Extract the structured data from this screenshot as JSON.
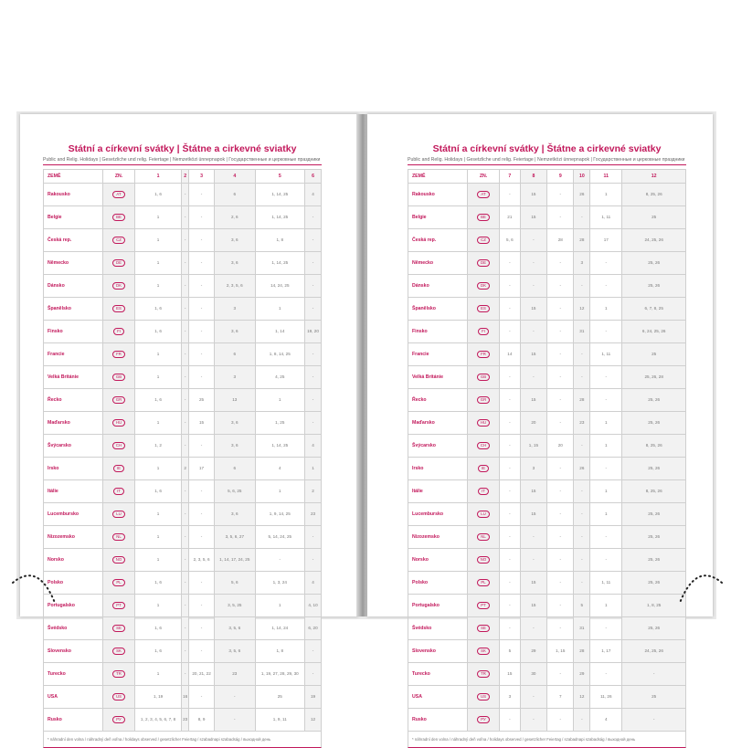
{
  "title": "Státní a církevní svátky | Štátne a cirkevné sviatky",
  "subtitle": "Public and Relig. Holidays | Gesetzliche und relig. Feiertage | Nemzetközi ünnepnapok | Государственные и церковные праздники",
  "col_country": "ZEMĚ",
  "col_code": "ZN.",
  "footnote": "* náhradní den volna / náhradný deň voľna / holidays observed / gesetzlicher Feiertag / szabadnapi szabadság / выходной день",
  "accent_color": "#c2185b",
  "countries": [
    {
      "name": "Rakousko",
      "code": "AT"
    },
    {
      "name": "Belgie",
      "code": "BE"
    },
    {
      "name": "Česká rep.",
      "code": "CZ"
    },
    {
      "name": "Německo",
      "code": "DE"
    },
    {
      "name": "Dánsko",
      "code": "DK"
    },
    {
      "name": "Španělsko",
      "code": "ES"
    },
    {
      "name": "Finsko",
      "code": "FI"
    },
    {
      "name": "Francie",
      "code": "FR"
    },
    {
      "name": "Velká Británie",
      "code": "GB"
    },
    {
      "name": "Řecko",
      "code": "GR"
    },
    {
      "name": "Maďarsko",
      "code": "HU"
    },
    {
      "name": "Švýcarsko",
      "code": "CH"
    },
    {
      "name": "Irsko",
      "code": "IE"
    },
    {
      "name": "Itálie",
      "code": "IT"
    },
    {
      "name": "Lucembursko",
      "code": "LU"
    },
    {
      "name": "Nizozemsko",
      "code": "NL"
    },
    {
      "name": "Norsko",
      "code": "NO"
    },
    {
      "name": "Polsko",
      "code": "PL"
    },
    {
      "name": "Portugalsko",
      "code": "PT"
    },
    {
      "name": "Švédsko",
      "code": "SE"
    },
    {
      "name": "Slovensko",
      "code": "SK"
    },
    {
      "name": "Turecko",
      "code": "TR"
    },
    {
      "name": "USA",
      "code": "US"
    },
    {
      "name": "Rusko",
      "code": "РУ"
    }
  ],
  "left": {
    "months": [
      "1",
      "2",
      "3",
      "4",
      "5",
      "6"
    ],
    "rows": [
      [
        "1, 6",
        "-",
        "-",
        "6",
        "1, 14, 25",
        "4"
      ],
      [
        "1",
        "-",
        "-",
        "2, 6",
        "1, 14, 25",
        "-"
      ],
      [
        "1",
        "-",
        "-",
        "3, 6",
        "1, 8",
        "-"
      ],
      [
        "1",
        "-",
        "-",
        "3, 6",
        "1, 14, 25",
        "-"
      ],
      [
        "1",
        "-",
        "-",
        "2, 3, 5, 6",
        "14, 24, 25",
        "-"
      ],
      [
        "1, 6",
        "-",
        "-",
        "3",
        "1",
        "-"
      ],
      [
        "1, 6",
        "-",
        "-",
        "3, 6",
        "1, 14",
        "19, 20"
      ],
      [
        "1",
        "-",
        "-",
        "6",
        "1, 8, 14, 25",
        "-"
      ],
      [
        "1",
        "-",
        "-",
        "3",
        "4, 25",
        "-"
      ],
      [
        "1, 6",
        "-",
        "25",
        "13",
        "1",
        "-"
      ],
      [
        "1",
        "-",
        "15",
        "3, 6",
        "1, 25",
        "-"
      ],
      [
        "1, 2",
        "-",
        "-",
        "3, 6",
        "1, 14, 25",
        "4"
      ],
      [
        "1",
        "2",
        "17",
        "6",
        "4",
        "1"
      ],
      [
        "1, 6",
        "-",
        "-",
        "5, 6, 25",
        "1",
        "2"
      ],
      [
        "1",
        "-",
        "-",
        "3, 6",
        "1, 9, 14, 25",
        "23"
      ],
      [
        "1",
        "-",
        "-",
        "3, 5, 6, 27",
        "5, 14, 24, 25",
        "-"
      ],
      [
        "1",
        "-",
        "2, 3, 5, 6",
        "1, 14, 17, 24, 25",
        "-",
        "-"
      ],
      [
        "1, 6",
        "-",
        "-",
        "5, 6",
        "1, 3, 24",
        "4"
      ],
      [
        "1",
        "-",
        "-",
        "3, 5, 25",
        "1",
        "4, 10"
      ],
      [
        "1, 6",
        "-",
        "-",
        "3, 5, 6",
        "1, 14, 24",
        "6, 20"
      ],
      [
        "1, 6",
        "-",
        "-",
        "3, 5, 6",
        "1, 8",
        "-"
      ],
      [
        "1",
        "-",
        "20, 21, 22",
        "23",
        "1, 19, 27, 28, 29, 30",
        "-"
      ],
      [
        "1, 19",
        "16",
        "-",
        "-",
        "25",
        "19"
      ],
      [
        "1, 2, 3, 4, 5, 6, 7, 8",
        "23",
        "8, 9",
        "-",
        "1, 9, 11",
        "12"
      ]
    ]
  },
  "right": {
    "months": [
      "7",
      "8",
      "9",
      "10",
      "11",
      "12"
    ],
    "rows": [
      [
        "-",
        "15",
        "-",
        "26",
        "1",
        "8, 25, 26"
      ],
      [
        "21",
        "15",
        "-",
        "-",
        "1, 11",
        "25"
      ],
      [
        "5, 6",
        "-",
        "28",
        "28",
        "17",
        "24, 25, 26"
      ],
      [
        "-",
        "-",
        "-",
        "3",
        "-",
        "25, 26"
      ],
      [
        "-",
        "-",
        "-",
        "-",
        "-",
        "25, 26"
      ],
      [
        "-",
        "15",
        "-",
        "12",
        "1",
        "6, 7, 8, 25"
      ],
      [
        "-",
        "-",
        "-",
        "31",
        "-",
        "6, 24, 25, 26"
      ],
      [
        "14",
        "15",
        "-",
        "-",
        "1, 11",
        "25"
      ],
      [
        "-",
        "-",
        "-",
        "-",
        "-",
        "25, 26, 28"
      ],
      [
        "-",
        "15",
        "-",
        "28",
        "-",
        "25, 26"
      ],
      [
        "-",
        "20",
        "-",
        "23",
        "1",
        "25, 26"
      ],
      [
        "-",
        "1, 15",
        "20",
        "-",
        "1",
        "8, 25, 26"
      ],
      [
        "-",
        "3",
        "-",
        "26",
        "-",
        "25, 26"
      ],
      [
        "-",
        "15",
        "-",
        "-",
        "1",
        "8, 25, 26"
      ],
      [
        "-",
        "15",
        "-",
        "-",
        "1",
        "25, 26"
      ],
      [
        "-",
        "-",
        "-",
        "-",
        "-",
        "25, 26"
      ],
      [
        "-",
        "-",
        "-",
        "-",
        "-",
        "25, 26"
      ],
      [
        "-",
        "15",
        "-",
        "-",
        "1, 11",
        "25, 26"
      ],
      [
        "-",
        "15",
        "-",
        "5",
        "1",
        "1, 8, 25"
      ],
      [
        "-",
        "-",
        "-",
        "31",
        "-",
        "25, 26"
      ],
      [
        "5",
        "29",
        "1, 15",
        "28",
        "1, 17",
        "24, 25, 26"
      ],
      [
        "15",
        "30",
        "-",
        "29",
        "-",
        "-"
      ],
      [
        "3",
        "-",
        "7",
        "12",
        "11, 26",
        "25"
      ],
      [
        "-",
        "-",
        "-",
        "-",
        "4",
        "-"
      ]
    ]
  }
}
